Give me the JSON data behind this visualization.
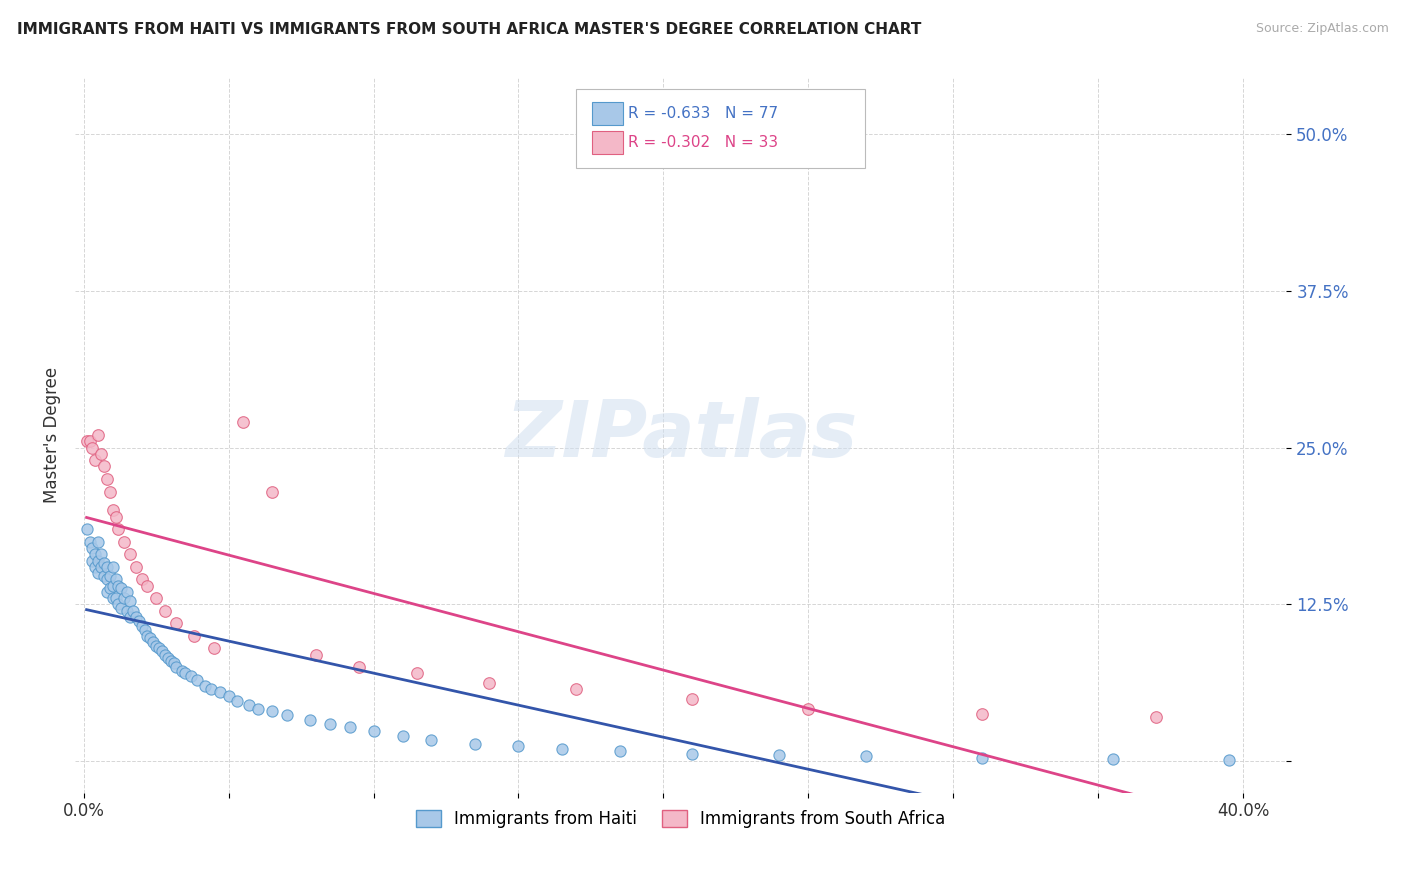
{
  "title": "IMMIGRANTS FROM HAITI VS IMMIGRANTS FROM SOUTH AFRICA MASTER'S DEGREE CORRELATION CHART",
  "source": "Source: ZipAtlas.com",
  "ylabel": "Master's Degree",
  "xlim": [
    -0.003,
    0.415
  ],
  "ylim": [
    -0.025,
    0.545
  ],
  "x_ticks": [
    0.0,
    0.05,
    0.1,
    0.15,
    0.2,
    0.25,
    0.3,
    0.35,
    0.4
  ],
  "x_tick_labels": [
    "0.0%",
    "",
    "",
    "",
    "",
    "",
    "",
    "",
    "40.0%"
  ],
  "y_ticks": [
    0.0,
    0.125,
    0.25,
    0.375,
    0.5
  ],
  "y_tick_labels": [
    "",
    "12.5%",
    "25.0%",
    "37.5%",
    "50.0%"
  ],
  "haiti_color": "#a8c8e8",
  "haiti_edge": "#5599cc",
  "sa_color": "#f4b8c8",
  "sa_edge": "#e06080",
  "haiti_R": -0.633,
  "haiti_N": 77,
  "sa_R": -0.302,
  "sa_N": 33,
  "legend_haiti_label": "Immigrants from Haiti",
  "legend_sa_label": "Immigrants from South Africa",
  "haiti_line_color": "#3355aa",
  "sa_line_color": "#dd4488",
  "watermark": "ZIPatlas",
  "haiti_x": [
    0.001,
    0.002,
    0.003,
    0.003,
    0.004,
    0.004,
    0.005,
    0.005,
    0.005,
    0.006,
    0.006,
    0.007,
    0.007,
    0.008,
    0.008,
    0.008,
    0.009,
    0.009,
    0.01,
    0.01,
    0.01,
    0.011,
    0.011,
    0.012,
    0.012,
    0.013,
    0.013,
    0.014,
    0.015,
    0.015,
    0.016,
    0.016,
    0.017,
    0.018,
    0.019,
    0.02,
    0.021,
    0.022,
    0.023,
    0.024,
    0.025,
    0.026,
    0.027,
    0.028,
    0.029,
    0.03,
    0.031,
    0.032,
    0.034,
    0.035,
    0.037,
    0.039,
    0.042,
    0.044,
    0.047,
    0.05,
    0.053,
    0.057,
    0.06,
    0.065,
    0.07,
    0.078,
    0.085,
    0.092,
    0.1,
    0.11,
    0.12,
    0.135,
    0.15,
    0.165,
    0.185,
    0.21,
    0.24,
    0.27,
    0.31,
    0.355,
    0.395
  ],
  "haiti_y": [
    0.185,
    0.175,
    0.17,
    0.16,
    0.165,
    0.155,
    0.175,
    0.16,
    0.15,
    0.155,
    0.165,
    0.158,
    0.148,
    0.155,
    0.145,
    0.135,
    0.148,
    0.138,
    0.155,
    0.14,
    0.13,
    0.145,
    0.13,
    0.14,
    0.125,
    0.138,
    0.122,
    0.13,
    0.135,
    0.12,
    0.128,
    0.115,
    0.12,
    0.115,
    0.112,
    0.108,
    0.105,
    0.1,
    0.098,
    0.095,
    0.092,
    0.09,
    0.088,
    0.085,
    0.082,
    0.08,
    0.078,
    0.075,
    0.072,
    0.07,
    0.068,
    0.065,
    0.06,
    0.058,
    0.055,
    0.052,
    0.048,
    0.045,
    0.042,
    0.04,
    0.037,
    0.033,
    0.03,
    0.027,
    0.024,
    0.02,
    0.017,
    0.014,
    0.012,
    0.01,
    0.008,
    0.006,
    0.005,
    0.004,
    0.003,
    0.002,
    0.001
  ],
  "sa_x": [
    0.001,
    0.002,
    0.003,
    0.004,
    0.005,
    0.006,
    0.007,
    0.008,
    0.009,
    0.01,
    0.011,
    0.012,
    0.014,
    0.016,
    0.018,
    0.02,
    0.022,
    0.025,
    0.028,
    0.032,
    0.038,
    0.045,
    0.055,
    0.065,
    0.08,
    0.095,
    0.115,
    0.14,
    0.17,
    0.21,
    0.25,
    0.31,
    0.37
  ],
  "sa_y": [
    0.255,
    0.255,
    0.25,
    0.24,
    0.26,
    0.245,
    0.235,
    0.225,
    0.215,
    0.2,
    0.195,
    0.185,
    0.175,
    0.165,
    0.155,
    0.145,
    0.14,
    0.13,
    0.12,
    0.11,
    0.1,
    0.09,
    0.27,
    0.215,
    0.085,
    0.075,
    0.07,
    0.062,
    0.058,
    0.05,
    0.042,
    0.038,
    0.035
  ]
}
